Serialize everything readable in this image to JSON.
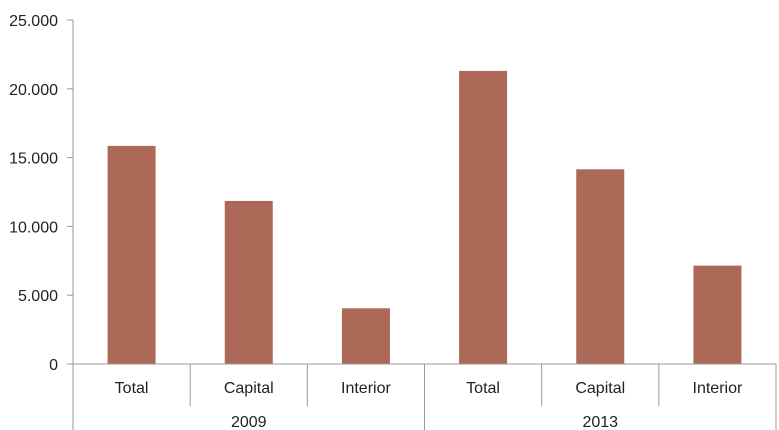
{
  "chart_data": {
    "type": "bar",
    "title": "",
    "xlabel": "",
    "ylabel": "",
    "ylim": [
      0,
      25000
    ],
    "yticks": [
      0,
      5000,
      10000,
      15000,
      20000,
      25000
    ],
    "ytick_labels": [
      "0",
      "5.000",
      "10.000",
      "15.000",
      "20.000",
      "25.000"
    ],
    "grid": false,
    "legend": "none",
    "bar_color": "#ac6957",
    "groups": [
      {
        "label": "2009",
        "categories": [
          "Total",
          "Capital",
          "Interior"
        ],
        "values": [
          15850,
          11850,
          4050
        ]
      },
      {
        "label": "2013",
        "categories": [
          "Total",
          "Capital",
          "Interior"
        ],
        "values": [
          21300,
          14150,
          7150
        ]
      }
    ]
  }
}
